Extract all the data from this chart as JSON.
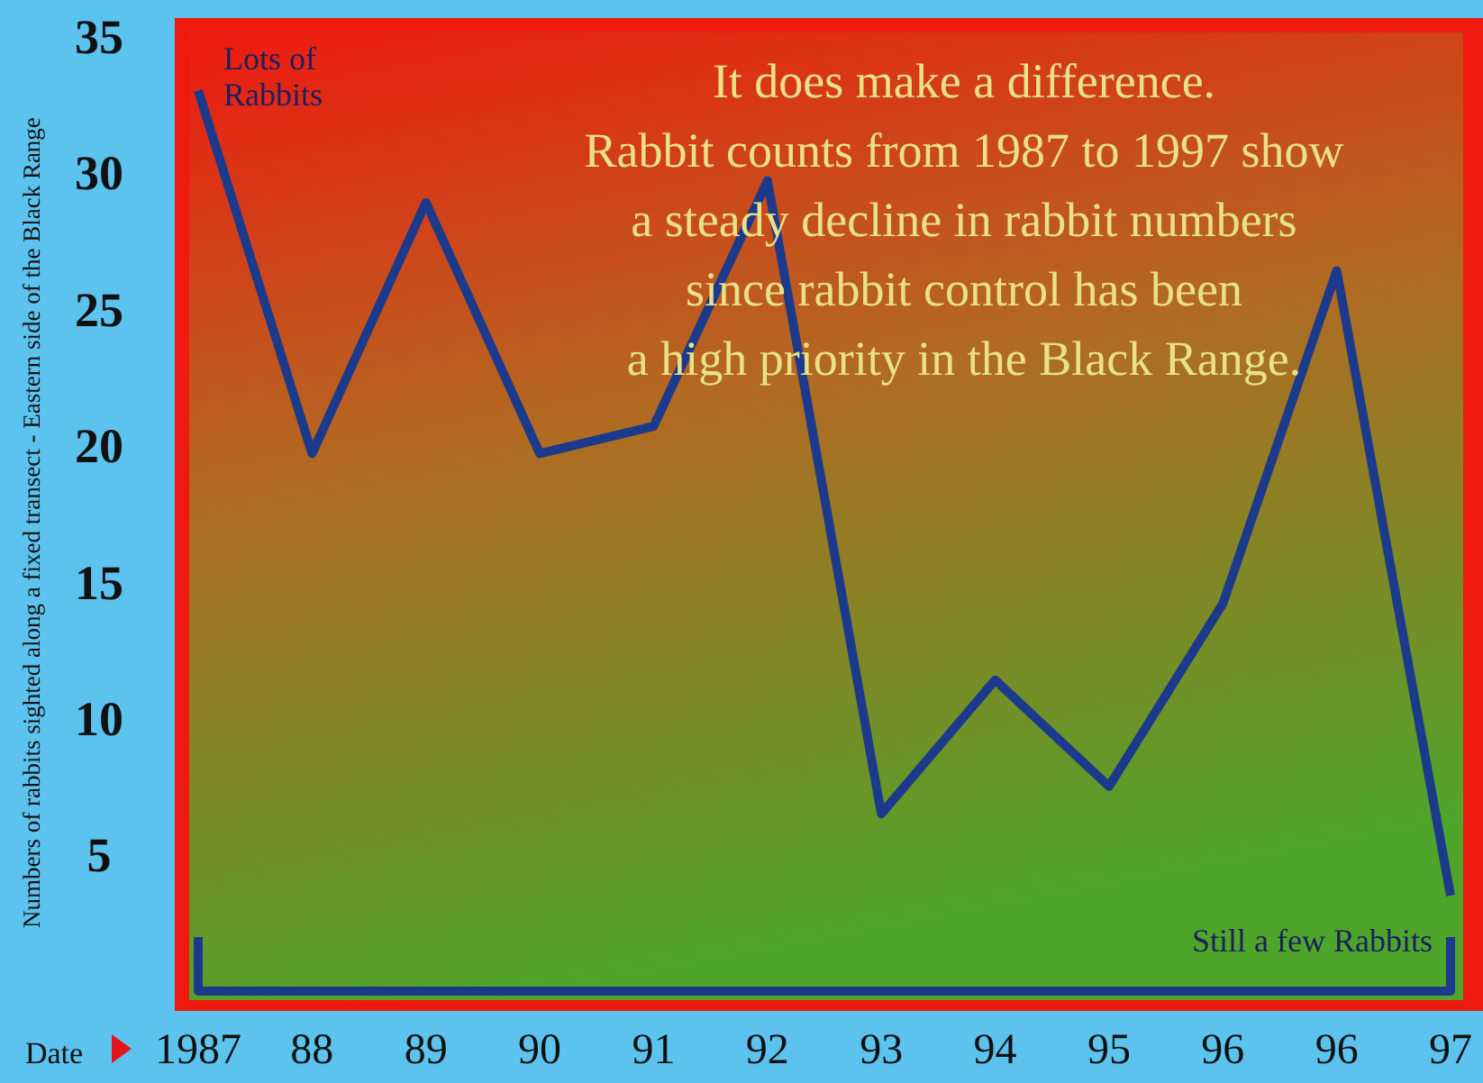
{
  "chart_data": {
    "type": "line",
    "xlabel": "Date",
    "ylabel": "Numbers of rabbits sighted along a fixed transect - Eastern side of the Black Range",
    "categories": [
      "1987",
      "88",
      "89",
      "90",
      "91",
      "92",
      "93",
      "94",
      "95",
      "96",
      "96",
      "97"
    ],
    "series": [
      {
        "color": "#1c3a8c",
        "values": [
          33,
          19.7,
          28.9,
          19.7,
          20.7,
          29.7,
          6.5,
          11.4,
          7.5,
          14.2,
          26.4,
          3.5
        ]
      }
    ],
    "ylim": [
      0,
      35
    ],
    "yticks": [
      5,
      10,
      15,
      20,
      25,
      30,
      35
    ],
    "annotations": [
      "It does make a difference.\nRabbit counts from 1987 to 1997 show\na steady decline in rabbit numbers\nsince rabbit control has been\na high priority in the Black Range.",
      {
        "text": "Lots of\nRabbits",
        "x": "1987",
        "y": 33
      },
      "Still a few Rabbits"
    ]
  }
}
